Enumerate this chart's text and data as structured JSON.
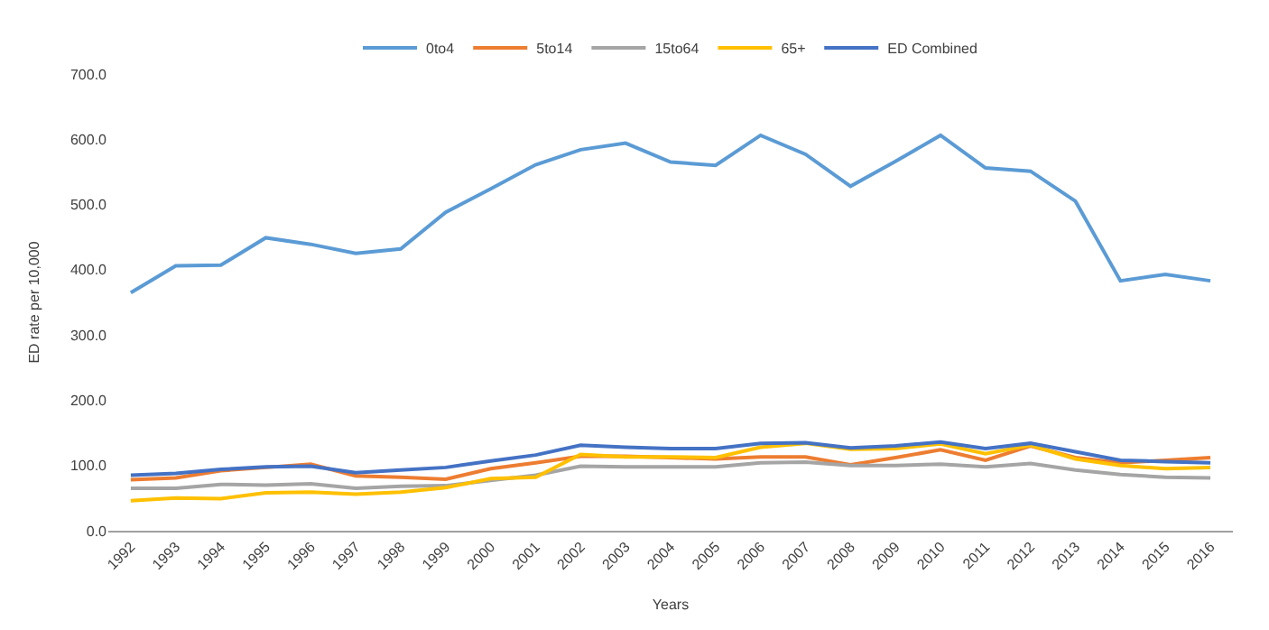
{
  "chart_data": {
    "type": "line",
    "xlabel": "Years",
    "ylabel": "ED rate per 10,000",
    "categories": [
      "1992",
      "1993",
      "1994",
      "1995",
      "1996",
      "1997",
      "1998",
      "1999",
      "2000",
      "2001",
      "2002",
      "2003",
      "2004",
      "2005",
      "2006",
      "2007",
      "2008",
      "2009",
      "2010",
      "2011",
      "2012",
      "2013",
      "2014",
      "2015",
      "2016"
    ],
    "series": [
      {
        "name": "0to4",
        "color": "#5b9bd5",
        "values": [
          365,
          406,
          407,
          449,
          439,
          425,
          432,
          488,
          524,
          561,
          584,
          594,
          565,
          560,
          606,
          577,
          528,
          566,
          606,
          556,
          551,
          505,
          383,
          393,
          383
        ]
      },
      {
        "name": "5to14",
        "color": "#ed7d31",
        "values": [
          78,
          81,
          92,
          97,
          102,
          84,
          82,
          79,
          95,
          104,
          114,
          114,
          112,
          110,
          113,
          113,
          101,
          112,
          124,
          108,
          130,
          112,
          104,
          108,
          112
        ]
      },
      {
        "name": "15to64",
        "color": "#a5a5a5",
        "values": [
          65,
          65,
          71,
          70,
          72,
          65,
          68,
          69,
          77,
          85,
          99,
          98,
          98,
          98,
          104,
          105,
          100,
          100,
          102,
          98,
          103,
          93,
          86,
          82,
          81
        ]
      },
      {
        "name": "65+",
        "color": "#ffc000",
        "values": [
          46,
          50,
          49,
          58,
          59,
          56,
          59,
          66,
          80,
          82,
          117,
          113,
          113,
          112,
          128,
          134,
          125,
          126,
          133,
          118,
          131,
          110,
          100,
          95,
          97
        ]
      },
      {
        "name": "ED Combined",
        "color": "#4472c4",
        "values": [
          85,
          88,
          94,
          98,
          99,
          89,
          93,
          97,
          107,
          116,
          131,
          128,
          126,
          126,
          134,
          135,
          127,
          130,
          136,
          126,
          134,
          121,
          108,
          106,
          104
        ]
      }
    ],
    "ylim": [
      0,
      700
    ],
    "yticks": [
      {
        "value": 0,
        "label": "0.0"
      },
      {
        "value": 100,
        "label": "100.0"
      },
      {
        "value": 200,
        "label": "200.0"
      },
      {
        "value": 300,
        "label": "300.0"
      },
      {
        "value": 400,
        "label": "400.0"
      },
      {
        "value": 500,
        "label": "500.0"
      },
      {
        "value": 600,
        "label": "600.0"
      },
      {
        "value": 700,
        "label": "700.0"
      }
    ],
    "legend": "top",
    "marker": "none",
    "line_style": "solid"
  }
}
